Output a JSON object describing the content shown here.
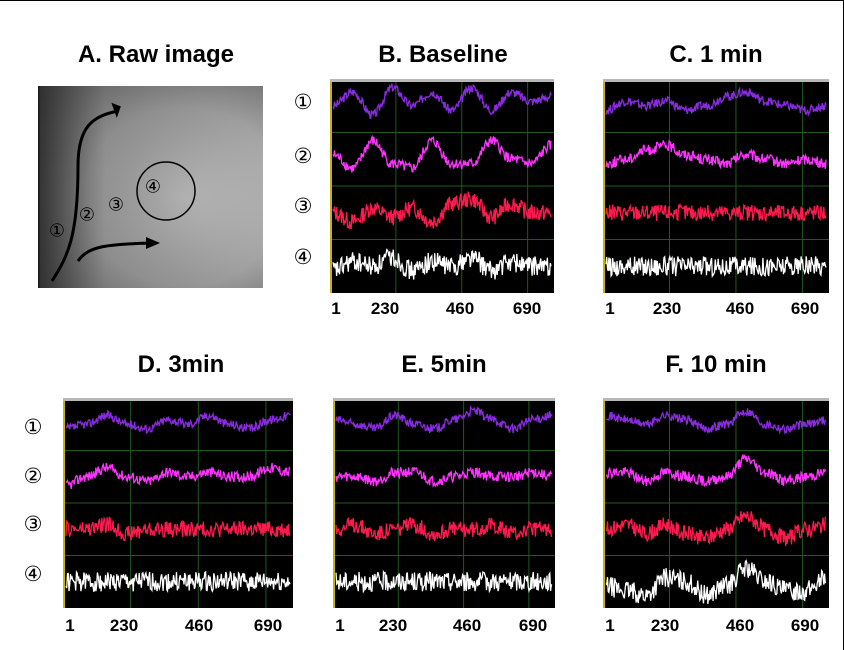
{
  "figure": {
    "raw_image_title": "A. Raw image",
    "raw_image_labels": [
      "①",
      "②",
      "③",
      "④"
    ],
    "row_markers": [
      "①",
      "②",
      "③",
      "④"
    ]
  },
  "chart_data": [
    {
      "type": "line",
      "title": "B. Baseline",
      "x_ticks": [
        "1",
        "230",
        "460",
        "690"
      ],
      "series": [
        {
          "marker": "①",
          "color": "#8a2be2",
          "values": [
            0.5,
            0.8,
            0.3,
            0.9,
            0.5,
            0.8,
            0.4,
            0.9,
            0.4,
            0.8,
            0.6,
            0.7
          ]
        },
        {
          "marker": "②",
          "color": "#ff33ff",
          "values": [
            0.6,
            0.3,
            0.9,
            0.4,
            0.3,
            0.9,
            0.4,
            0.4,
            0.9,
            0.5,
            0.4,
            0.8
          ]
        },
        {
          "marker": "③",
          "color": "#ff1a4d",
          "values": [
            0.5,
            0.3,
            0.6,
            0.4,
            0.6,
            0.3,
            0.7,
            0.8,
            0.4,
            0.7,
            0.5,
            0.5
          ]
        },
        {
          "marker": "④",
          "color": "#ffffff",
          "values": [
            0.4,
            0.6,
            0.5,
            0.7,
            0.4,
            0.6,
            0.5,
            0.7,
            0.4,
            0.6,
            0.5,
            0.5
          ]
        }
      ]
    },
    {
      "type": "line",
      "title": "C. 1 min",
      "x_ticks": [
        "1",
        "230",
        "460",
        "690"
      ],
      "series": [
        {
          "marker": "①",
          "color": "#8a2be2",
          "values": [
            0.4,
            0.6,
            0.5,
            0.6,
            0.4,
            0.5,
            0.7,
            0.8,
            0.6,
            0.5,
            0.4,
            0.5
          ]
        },
        {
          "marker": "②",
          "color": "#ff33ff",
          "values": [
            0.4,
            0.5,
            0.7,
            0.8,
            0.6,
            0.5,
            0.4,
            0.6,
            0.5,
            0.4,
            0.5,
            0.4
          ]
        },
        {
          "marker": "③",
          "color": "#ff1a4d",
          "values": [
            0.5,
            0.5,
            0.5,
            0.5,
            0.5,
            0.5,
            0.5,
            0.5,
            0.5,
            0.5,
            0.5,
            0.5
          ]
        },
        {
          "marker": "④",
          "color": "#ffffff",
          "values": [
            0.5,
            0.5,
            0.5,
            0.5,
            0.5,
            0.5,
            0.5,
            0.5,
            0.5,
            0.5,
            0.5,
            0.5
          ]
        }
      ]
    },
    {
      "type": "line",
      "title": "D. 3min",
      "x_ticks": [
        "1",
        "230",
        "460",
        "690"
      ],
      "series": [
        {
          "marker": "①",
          "color": "#8a2be2",
          "values": [
            0.4,
            0.5,
            0.7,
            0.5,
            0.4,
            0.6,
            0.5,
            0.7,
            0.5,
            0.4,
            0.6,
            0.7
          ]
        },
        {
          "marker": "②",
          "color": "#ff33ff",
          "values": [
            0.3,
            0.5,
            0.7,
            0.5,
            0.4,
            0.6,
            0.5,
            0.6,
            0.5,
            0.5,
            0.7,
            0.6
          ]
        },
        {
          "marker": "③",
          "color": "#ff1a4d",
          "values": [
            0.5,
            0.5,
            0.6,
            0.4,
            0.5,
            0.5,
            0.5,
            0.5,
            0.5,
            0.5,
            0.5,
            0.5
          ]
        },
        {
          "marker": "④",
          "color": "#ffffff",
          "values": [
            0.5,
            0.5,
            0.5,
            0.5,
            0.5,
            0.5,
            0.5,
            0.5,
            0.5,
            0.5,
            0.5,
            0.5
          ]
        }
      ]
    },
    {
      "type": "line",
      "title": "E. 5min",
      "x_ticks": [
        "1",
        "230",
        "460",
        "690"
      ],
      "series": [
        {
          "marker": "①",
          "color": "#8a2be2",
          "values": [
            0.6,
            0.5,
            0.4,
            0.7,
            0.5,
            0.4,
            0.6,
            0.8,
            0.6,
            0.4,
            0.6,
            0.7
          ]
        },
        {
          "marker": "②",
          "color": "#ff33ff",
          "values": [
            0.5,
            0.5,
            0.4,
            0.6,
            0.6,
            0.4,
            0.5,
            0.6,
            0.5,
            0.5,
            0.6,
            0.5
          ]
        },
        {
          "marker": "③",
          "color": "#ff1a4d",
          "values": [
            0.5,
            0.6,
            0.4,
            0.5,
            0.6,
            0.4,
            0.5,
            0.5,
            0.6,
            0.4,
            0.5,
            0.5
          ]
        },
        {
          "marker": "④",
          "color": "#ffffff",
          "values": [
            0.5,
            0.5,
            0.5,
            0.5,
            0.5,
            0.5,
            0.5,
            0.5,
            0.5,
            0.5,
            0.5,
            0.5
          ]
        }
      ]
    },
    {
      "type": "line",
      "title": "F. 10 min",
      "x_ticks": [
        "1",
        "230",
        "460",
        "690"
      ],
      "series": [
        {
          "marker": "①",
          "color": "#8a2be2",
          "values": [
            0.7,
            0.6,
            0.5,
            0.7,
            0.6,
            0.4,
            0.5,
            0.8,
            0.5,
            0.4,
            0.5,
            0.6
          ]
        },
        {
          "marker": "②",
          "color": "#ff33ff",
          "values": [
            0.6,
            0.6,
            0.4,
            0.6,
            0.5,
            0.4,
            0.5,
            0.9,
            0.6,
            0.4,
            0.5,
            0.6
          ]
        },
        {
          "marker": "③",
          "color": "#ff1a4d",
          "values": [
            0.5,
            0.6,
            0.4,
            0.6,
            0.4,
            0.3,
            0.5,
            0.8,
            0.5,
            0.3,
            0.5,
            0.6
          ]
        },
        {
          "marker": "④",
          "color": "#ffffff",
          "values": [
            0.4,
            0.3,
            0.2,
            0.6,
            0.5,
            0.2,
            0.4,
            0.8,
            0.5,
            0.3,
            0.3,
            0.6
          ]
        }
      ]
    }
  ]
}
